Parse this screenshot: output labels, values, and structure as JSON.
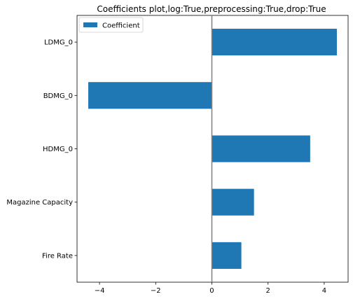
{
  "chart_data": {
    "type": "bar",
    "orientation": "horizontal",
    "title": "Coefficients plot,log:True,preprocessing:True,drop:True",
    "categories": [
      "LDMG_0",
      "BDMG_0",
      "HDMG_0",
      "Magazine Capacity",
      "Fire Rate"
    ],
    "series": [
      {
        "name": "Coefficient",
        "values": [
          4.45,
          -4.4,
          3.5,
          1.5,
          1.05
        ],
        "color": "#1f77b4"
      }
    ],
    "xlim": [
      -4.8,
      4.85
    ],
    "xticks": [
      -4,
      -2,
      0,
      2,
      4
    ],
    "xlabel": "",
    "ylabel": "",
    "zero_line": {
      "value": 0,
      "color": "#808080"
    },
    "grid": false,
    "legend": {
      "position": "top-left",
      "entries": [
        "Coefficient"
      ]
    }
  }
}
